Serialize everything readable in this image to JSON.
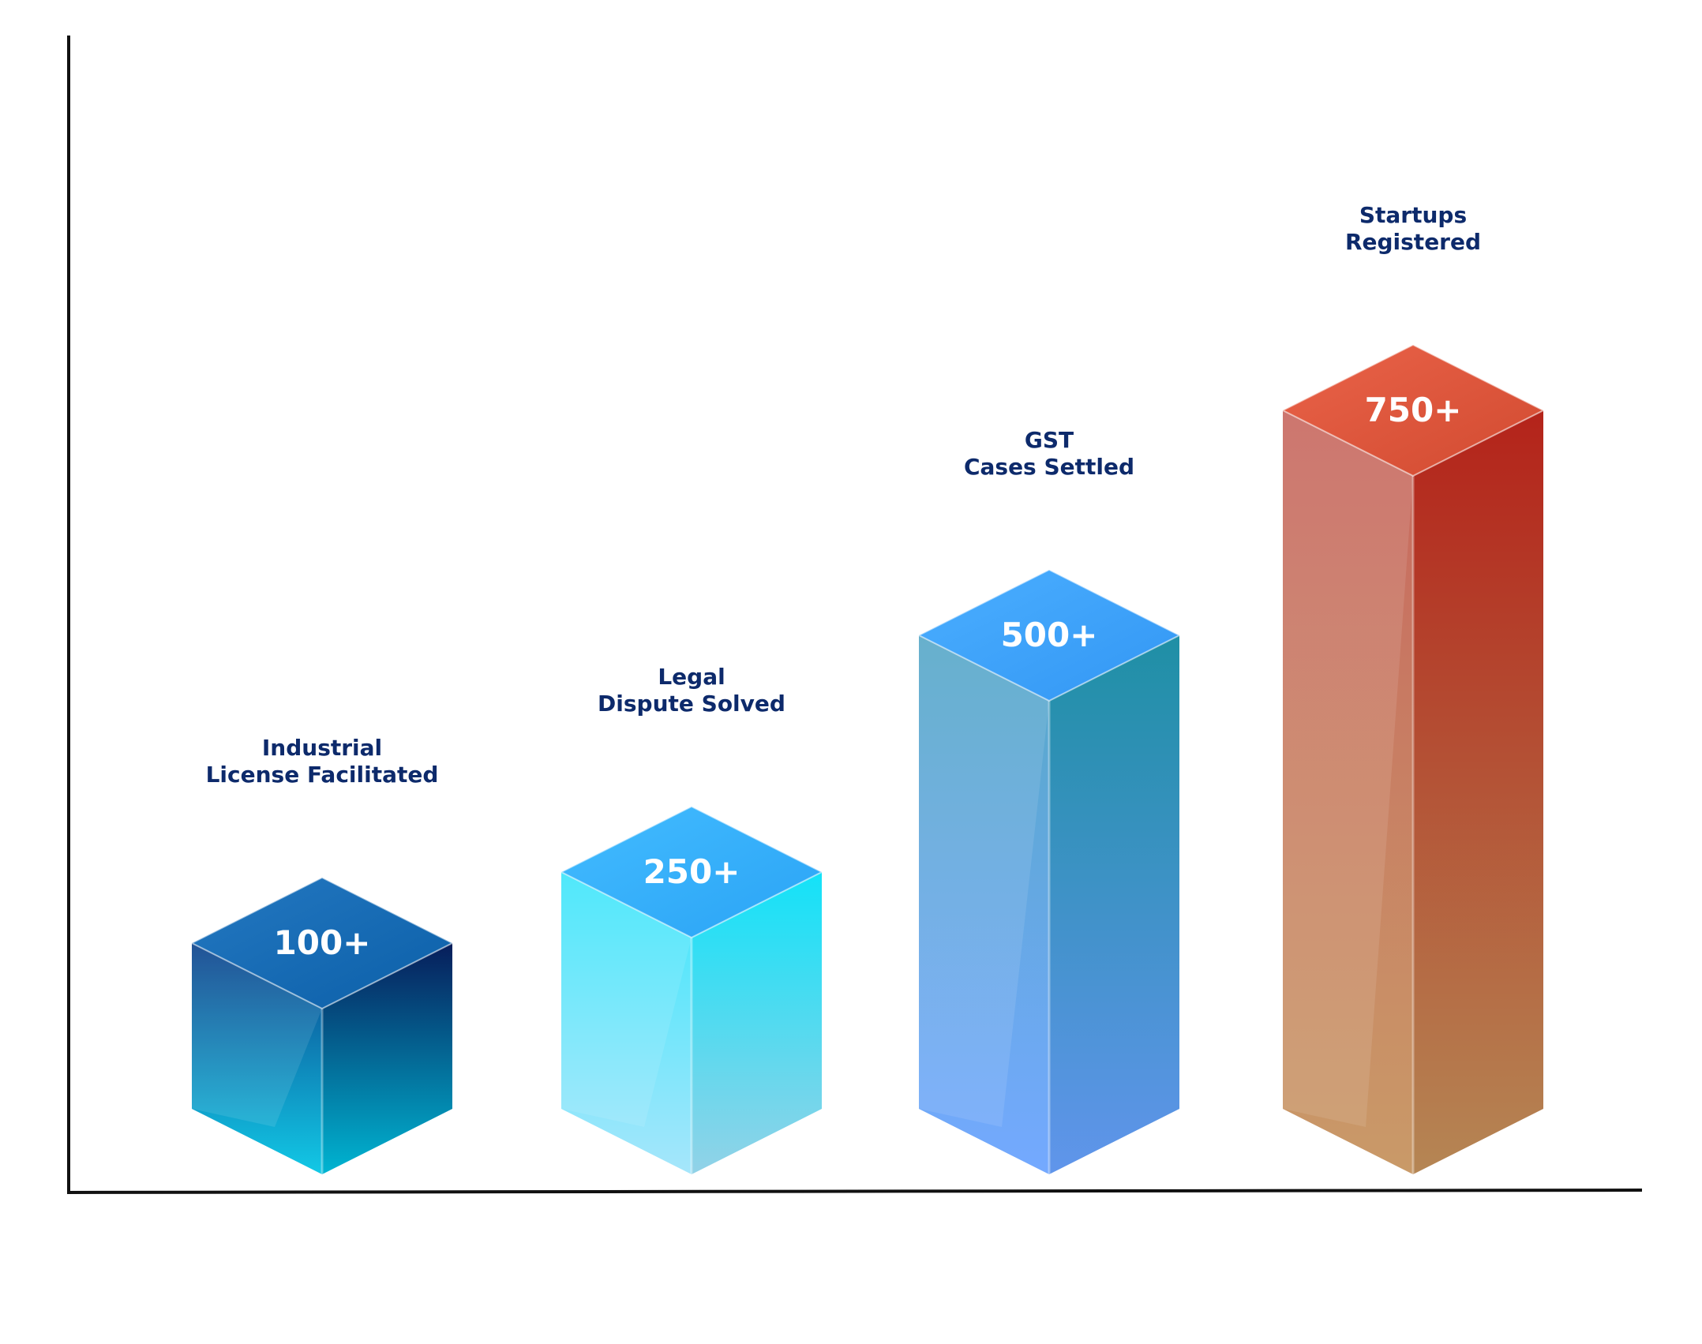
{
  "chart_data": {
    "type": "bar",
    "categories": [
      "Industrial\nLicense Facilitated",
      "Legal\nDispute Solved",
      "GST\nCases Settled",
      "Startups\nRegistered"
    ],
    "category_lines": [
      [
        "Industrial",
        "License Facilitated"
      ],
      [
        "Legal",
        "Dispute Solved"
      ],
      [
        "GST",
        "Cases Settled"
      ],
      [
        "Startups",
        "Registered"
      ]
    ],
    "values": [
      100,
      250,
      500,
      750
    ],
    "value_labels": [
      "100+",
      "250+",
      "500+",
      "750+"
    ],
    "title": "",
    "xlabel": "",
    "ylabel": "",
    "ylim": [
      0,
      750
    ],
    "grid": false,
    "legend": "none",
    "style": "3d-isometric-prisms",
    "colors": {
      "axis": "#111111",
      "category_text": "#0d2a6b",
      "value_text": "#ffffff",
      "bar_1": {
        "top": "#0b5fa8",
        "left": "#0a3f8a",
        "right": "#071d5a",
        "bottom": "#12c9e6"
      },
      "bar_2": {
        "top": "#2aa3f5",
        "left": "#3ce6fb",
        "right": "#13e2f8",
        "bottom": "#a6e6fb"
      },
      "bar_3": {
        "top": "#3296f4",
        "left": "#56a8c7",
        "right": "#1f8fa5",
        "bottom": "#74a9ff"
      },
      "bar_4": {
        "top": "#d14a30",
        "left": "#c8675f",
        "right": "#b4231a",
        "bottom": "#c99a68"
      }
    }
  }
}
